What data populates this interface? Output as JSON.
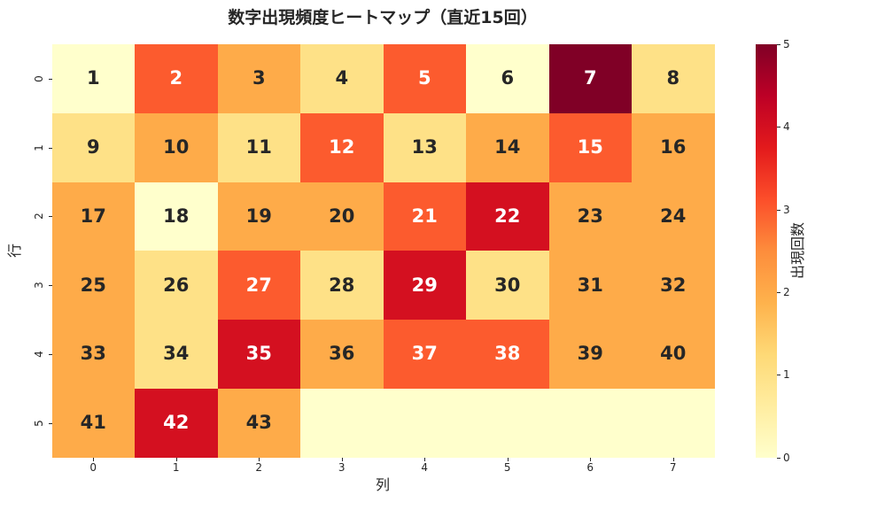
{
  "chart_data": {
    "type": "heatmap",
    "title": "数字出現頻度ヒートマップ（直近15回）",
    "xlabel": "列",
    "ylabel": "行",
    "colorbar_label": "出現回数",
    "row_tick_labels": [
      "0",
      "1",
      "2",
      "3",
      "4",
      "5"
    ],
    "col_tick_labels": [
      "0",
      "1",
      "2",
      "3",
      "4",
      "5",
      "6",
      "7"
    ],
    "vmin": 0,
    "vmax": 5,
    "colorbar_tick_labels": [
      "0",
      "1",
      "2",
      "3",
      "4",
      "5"
    ],
    "colorbar_tick_values": [
      0,
      1,
      2,
      3,
      4,
      5
    ],
    "values": [
      [
        0,
        3,
        2,
        1,
        3,
        0,
        5,
        1
      ],
      [
        1,
        2,
        1,
        3,
        1,
        2,
        3,
        2
      ],
      [
        2,
        0,
        2,
        2,
        3,
        4,
        2,
        2
      ],
      [
        2,
        1,
        3,
        1,
        4,
        1,
        2,
        2
      ],
      [
        2,
        1,
        4,
        2,
        3,
        3,
        2,
        2
      ],
      [
        2,
        4,
        2,
        0,
        0,
        0,
        0,
        0
      ]
    ],
    "annotations": [
      [
        "1",
        "2",
        "3",
        "4",
        "5",
        "6",
        "7",
        "8"
      ],
      [
        "9",
        "10",
        "11",
        "12",
        "13",
        "14",
        "15",
        "16"
      ],
      [
        "17",
        "18",
        "19",
        "20",
        "21",
        "22",
        "23",
        "24"
      ],
      [
        "25",
        "26",
        "27",
        "28",
        "29",
        "30",
        "31",
        "32"
      ],
      [
        "33",
        "34",
        "35",
        "36",
        "37",
        "38",
        "39",
        "40"
      ],
      [
        "41",
        "42",
        "43",
        "",
        "",
        "",
        "",
        ""
      ]
    ],
    "colormap": "YlOrRd",
    "value_colors": [
      "#ffffcc",
      "#fee187",
      "#feab49",
      "#fc5b2e",
      "#d41020",
      "#800026"
    ],
    "annotation_dark_color": "#262626",
    "annotation_light_color": "#ffffff",
    "light_text_threshold": 3,
    "colorbar_gradient_stops": [
      "#ffffcc",
      "#ffeda0",
      "#fed976",
      "#feb24c",
      "#fd8d3c",
      "#fc4e2a",
      "#e31a1c",
      "#bd0026",
      "#800026"
    ],
    "grid": false,
    "legend_position": "right-colorbar"
  }
}
